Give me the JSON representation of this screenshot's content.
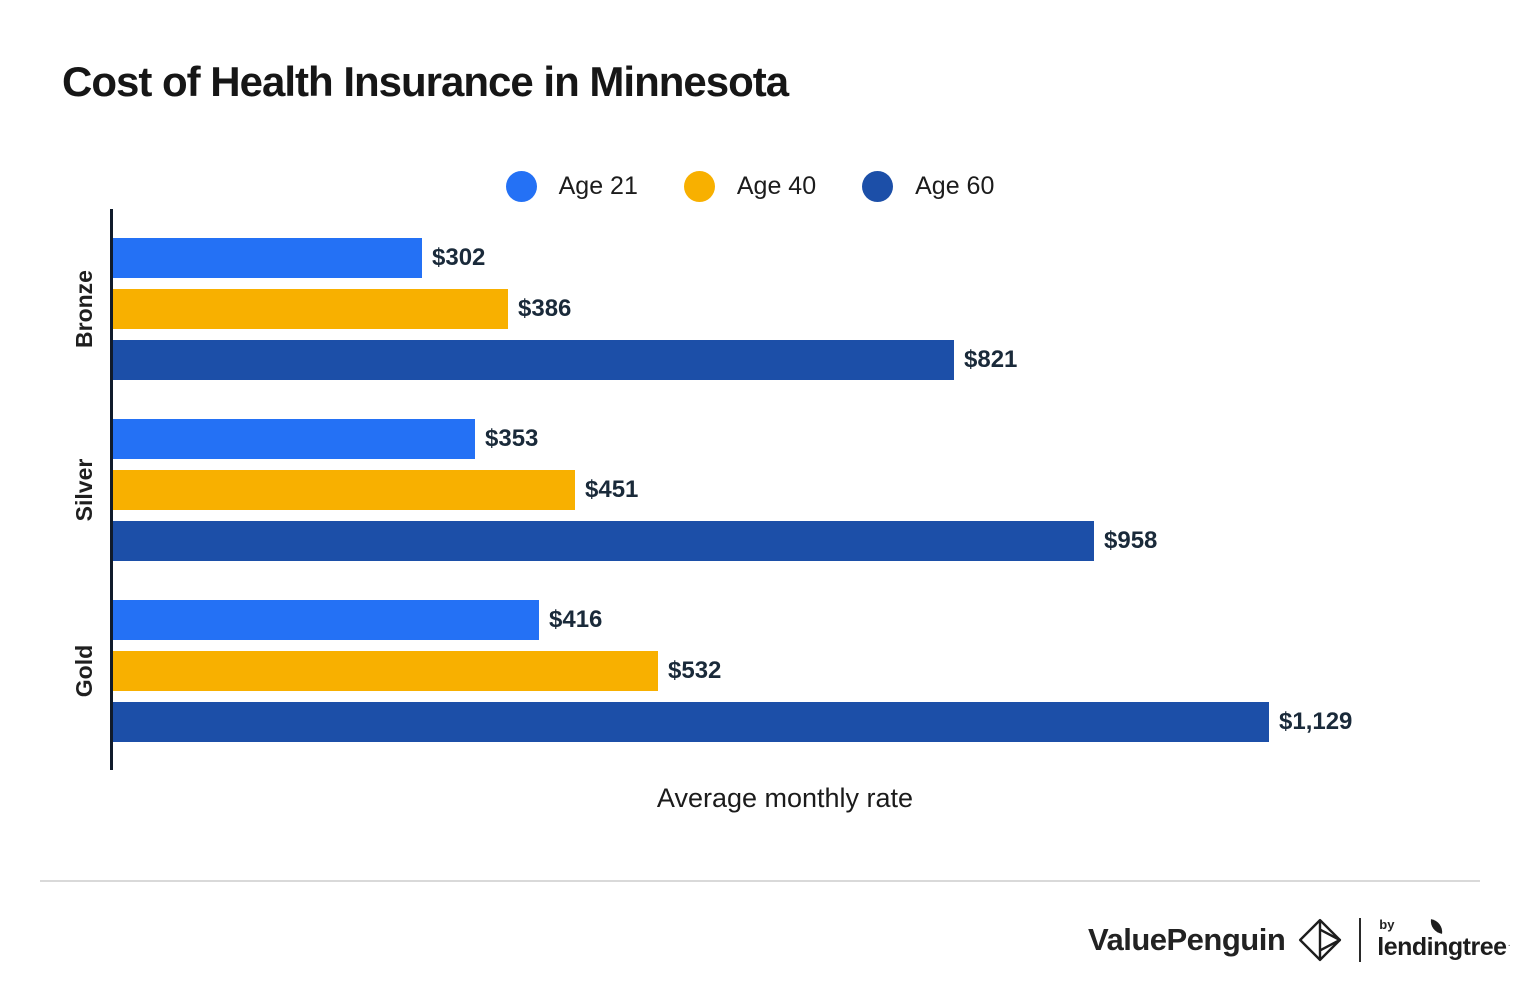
{
  "title": "Cost of Health Insurance in Minnesota",
  "chart_data": {
    "type": "bar",
    "orientation": "horizontal",
    "title": "Cost of Health Insurance in Minnesota",
    "categories": [
      "Bronze",
      "Silver",
      "Gold"
    ],
    "series": [
      {
        "name": "Age 21",
        "color": "#2471F5",
        "values": [
          302,
          353,
          416
        ],
        "labels": [
          "$302",
          "$353",
          "$416"
        ]
      },
      {
        "name": "Age 40",
        "color": "#F8B000",
        "values": [
          386,
          451,
          532
        ],
        "labels": [
          "$386",
          "$451",
          "$532"
        ]
      },
      {
        "name": "Age 60",
        "color": "#1C4FA8",
        "values": [
          821,
          958,
          1129
        ],
        "labels": [
          "$821",
          "$958",
          "$1,129"
        ]
      }
    ],
    "xlabel": "Average monthly rate",
    "ylabel": "",
    "xlim": [
      0,
      1318
    ],
    "grid": false,
    "legend_position": "top-center",
    "value_labels_shown": true,
    "axis_color": "#101b2b"
  },
  "footer": {
    "brand": "ValuePenguin",
    "by_label": "by",
    "partner_brand": "lendingtree",
    "trademark_dot": "·"
  }
}
